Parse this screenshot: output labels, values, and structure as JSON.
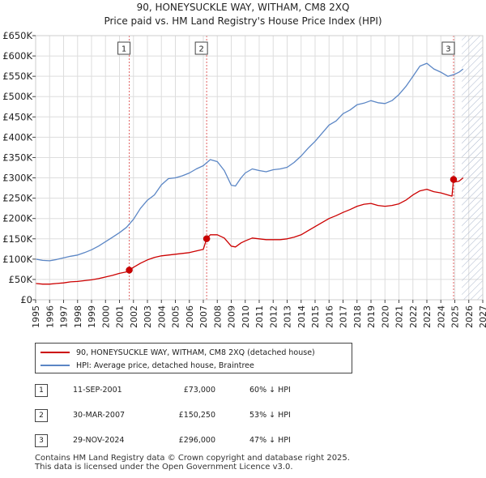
{
  "title": {
    "line1": "90, HONEYSUCKLE WAY, WITHAM, CM8 2XQ",
    "line2": "Price paid vs. HM Land Registry's House Price Index (HPI)"
  },
  "chart_data": {
    "type": "line",
    "xlim": [
      1995,
      2027
    ],
    "ylim": [
      0,
      650000
    ],
    "y_ticks": [
      0,
      50000,
      100000,
      150000,
      200000,
      250000,
      300000,
      350000,
      400000,
      450000,
      500000,
      550000,
      600000,
      650000
    ],
    "y_tick_labels": [
      "£0",
      "£50K",
      "£100K",
      "£150K",
      "£200K",
      "£250K",
      "£300K",
      "£350K",
      "£400K",
      "£450K",
      "£500K",
      "£550K",
      "£600K",
      "£650K"
    ],
    "x_ticks": [
      1995,
      1996,
      1997,
      1998,
      1999,
      2000,
      2001,
      2002,
      2003,
      2004,
      2005,
      2006,
      2007,
      2008,
      2009,
      2010,
      2011,
      2012,
      2013,
      2014,
      2015,
      2016,
      2017,
      2018,
      2019,
      2020,
      2021,
      2022,
      2023,
      2024,
      2025,
      2026,
      2027
    ],
    "x_tick_labels": [
      "1995",
      "1996",
      "1997",
      "1998",
      "1999",
      "2000",
      "2001",
      "2002",
      "2003",
      "2004",
      "2005",
      "2006",
      "2007",
      "2008",
      "2009",
      "2010",
      "2011",
      "2012",
      "2013",
      "2014",
      "2015",
      "2016",
      "2017",
      "2018",
      "2019",
      "2020",
      "2021",
      "2022",
      "2023",
      "2024",
      "2025",
      "2026",
      "2027"
    ],
    "grid": true,
    "future_hatch_from": 2025.5,
    "series": [
      {
        "name": "90, HONEYSUCKLE WAY, WITHAM, CM8 2XQ (detached house)",
        "color": "#cc0000",
        "x": [
          1995.0,
          1995.5,
          1996.0,
          1996.5,
          1997.0,
          1997.5,
          1998.0,
          1998.5,
          1999.0,
          1999.5,
          2000.0,
          2000.5,
          2001.0,
          2001.5,
          2001.7,
          2002.0,
          2002.5,
          2003.0,
          2003.5,
          2004.0,
          2004.5,
          2005.0,
          2005.5,
          2006.0,
          2006.5,
          2007.0,
          2007.24,
          2007.5,
          2008.0,
          2008.5,
          2009.0,
          2009.3,
          2009.7,
          2010.0,
          2010.5,
          2011.0,
          2011.5,
          2012.0,
          2012.5,
          2013.0,
          2013.5,
          2014.0,
          2014.5,
          2015.0,
          2015.5,
          2016.0,
          2016.5,
          2017.0,
          2017.5,
          2018.0,
          2018.5,
          2019.0,
          2019.5,
          2020.0,
          2020.5,
          2021.0,
          2021.5,
          2022.0,
          2022.5,
          2023.0,
          2023.5,
          2024.0,
          2024.5,
          2024.8,
          2024.91,
          2025.0,
          2025.3,
          2025.6
        ],
        "values": [
          40000,
          38500,
          38500,
          40000,
          41500,
          44000,
          45000,
          47000,
          49000,
          52000,
          56000,
          60000,
          65000,
          68500,
          73000,
          80000,
          90000,
          98000,
          104000,
          108000,
          110000,
          112000,
          114000,
          116000,
          120000,
          124000,
          150250,
          160000,
          160000,
          152000,
          132000,
          130000,
          140000,
          145000,
          152000,
          150000,
          148000,
          148000,
          148000,
          150000,
          154000,
          160000,
          170000,
          180000,
          190000,
          200000,
          207000,
          215000,
          222000,
          230000,
          235000,
          237000,
          232000,
          230000,
          232000,
          236000,
          245000,
          258000,
          268000,
          272000,
          266000,
          263000,
          258000,
          255000,
          296000,
          290000,
          292000,
          300000
        ]
      },
      {
        "name": "HPI: Average price, detached house, Braintree",
        "color": "#5b86c5",
        "x": [
          1995.0,
          1995.5,
          1996.0,
          1996.5,
          1997.0,
          1997.5,
          1998.0,
          1998.5,
          1999.0,
          1999.5,
          2000.0,
          2000.5,
          2001.0,
          2001.5,
          2002.0,
          2002.5,
          2003.0,
          2003.5,
          2004.0,
          2004.5,
          2005.0,
          2005.5,
          2006.0,
          2006.5,
          2007.0,
          2007.5,
          2008.0,
          2008.5,
          2009.0,
          2009.3,
          2009.7,
          2010.0,
          2010.5,
          2011.0,
          2011.5,
          2012.0,
          2012.5,
          2013.0,
          2013.5,
          2014.0,
          2014.5,
          2015.0,
          2015.5,
          2016.0,
          2016.5,
          2017.0,
          2017.5,
          2018.0,
          2018.5,
          2019.0,
          2019.5,
          2020.0,
          2020.5,
          2021.0,
          2021.5,
          2022.0,
          2022.5,
          2023.0,
          2023.5,
          2024.0,
          2024.5,
          2025.0,
          2025.3,
          2025.6
        ],
        "values": [
          100000,
          97000,
          96000,
          99000,
          103000,
          107000,
          110000,
          116000,
          123000,
          132000,
          143000,
          154000,
          165000,
          178000,
          198000,
          225000,
          245000,
          258000,
          283000,
          298000,
          300000,
          305000,
          312000,
          322000,
          330000,
          345000,
          340000,
          318000,
          282000,
          280000,
          300000,
          312000,
          322000,
          318000,
          315000,
          320000,
          322000,
          326000,
          338000,
          354000,
          373000,
          390000,
          410000,
          430000,
          440000,
          458000,
          467000,
          480000,
          484000,
          490000,
          485000,
          483000,
          490000,
          505000,
          525000,
          550000,
          575000,
          582000,
          568000,
          560000,
          550000,
          555000,
          560000,
          568000
        ]
      }
    ],
    "sales": [
      {
        "label": "1",
        "x": 2001.7,
        "value": 73000
      },
      {
        "label": "2",
        "x": 2007.24,
        "value": 150250
      },
      {
        "label": "3",
        "x": 2024.91,
        "value": 296000
      }
    ]
  },
  "legend": {
    "property": "90, HONEYSUCKLE WAY, WITHAM, CM8 2XQ (detached house)",
    "hpi": "HPI: Average price, detached house, Braintree"
  },
  "sales_table": [
    {
      "num": "1",
      "date": "11-SEP-2001",
      "price": "£73,000",
      "hpi": "60% ↓ HPI"
    },
    {
      "num": "2",
      "date": "30-MAR-2007",
      "price": "£150,250",
      "hpi": "53% ↓ HPI"
    },
    {
      "num": "3",
      "date": "29-NOV-2024",
      "price": "£296,000",
      "hpi": "47% ↓ HPI"
    }
  ],
  "footer": {
    "line1": "Contains HM Land Registry data © Crown copyright and database right 2025.",
    "line2": "This data is licensed under the Open Government Licence v3.0."
  },
  "colors": {
    "property_line": "#cc0000",
    "hpi_line": "#5b86c5",
    "sale_marker_line": "#e06060",
    "grid": "#dddddd",
    "hatch": "#aab6cc"
  }
}
